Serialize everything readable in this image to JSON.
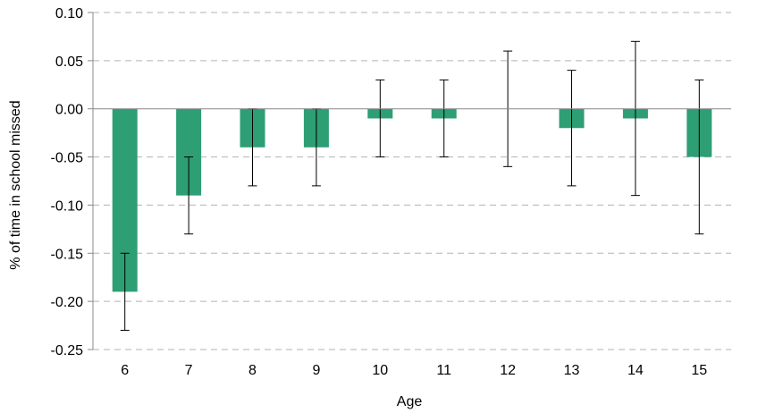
{
  "chart_data": {
    "type": "bar",
    "title": "",
    "xlabel": "Age",
    "ylabel": "% of time in school missed",
    "categories": [
      "6",
      "7",
      "8",
      "9",
      "10",
      "11",
      "12",
      "13",
      "14",
      "15"
    ],
    "series": [
      {
        "values": [
          -0.19,
          -0.09,
          -0.04,
          -0.04,
          -0.01,
          -0.01,
          0.0,
          -0.02,
          -0.01,
          -0.05
        ],
        "error_low": [
          -0.23,
          -0.13,
          -0.08,
          -0.08,
          -0.05,
          -0.05,
          -0.06,
          -0.08,
          -0.09,
          -0.13
        ],
        "error_high": [
          -0.15,
          -0.05,
          0.0,
          0.0,
          0.03,
          0.03,
          0.06,
          0.04,
          0.07,
          0.03
        ],
        "color": "#2e9e74"
      }
    ],
    "ylim": [
      -0.25,
      0.1
    ],
    "yticks": [
      "0.10",
      "0.05",
      "0.00",
      "-0.05",
      "-0.10",
      "-0.15",
      "-0.20",
      "-0.25"
    ],
    "grid": true
  }
}
